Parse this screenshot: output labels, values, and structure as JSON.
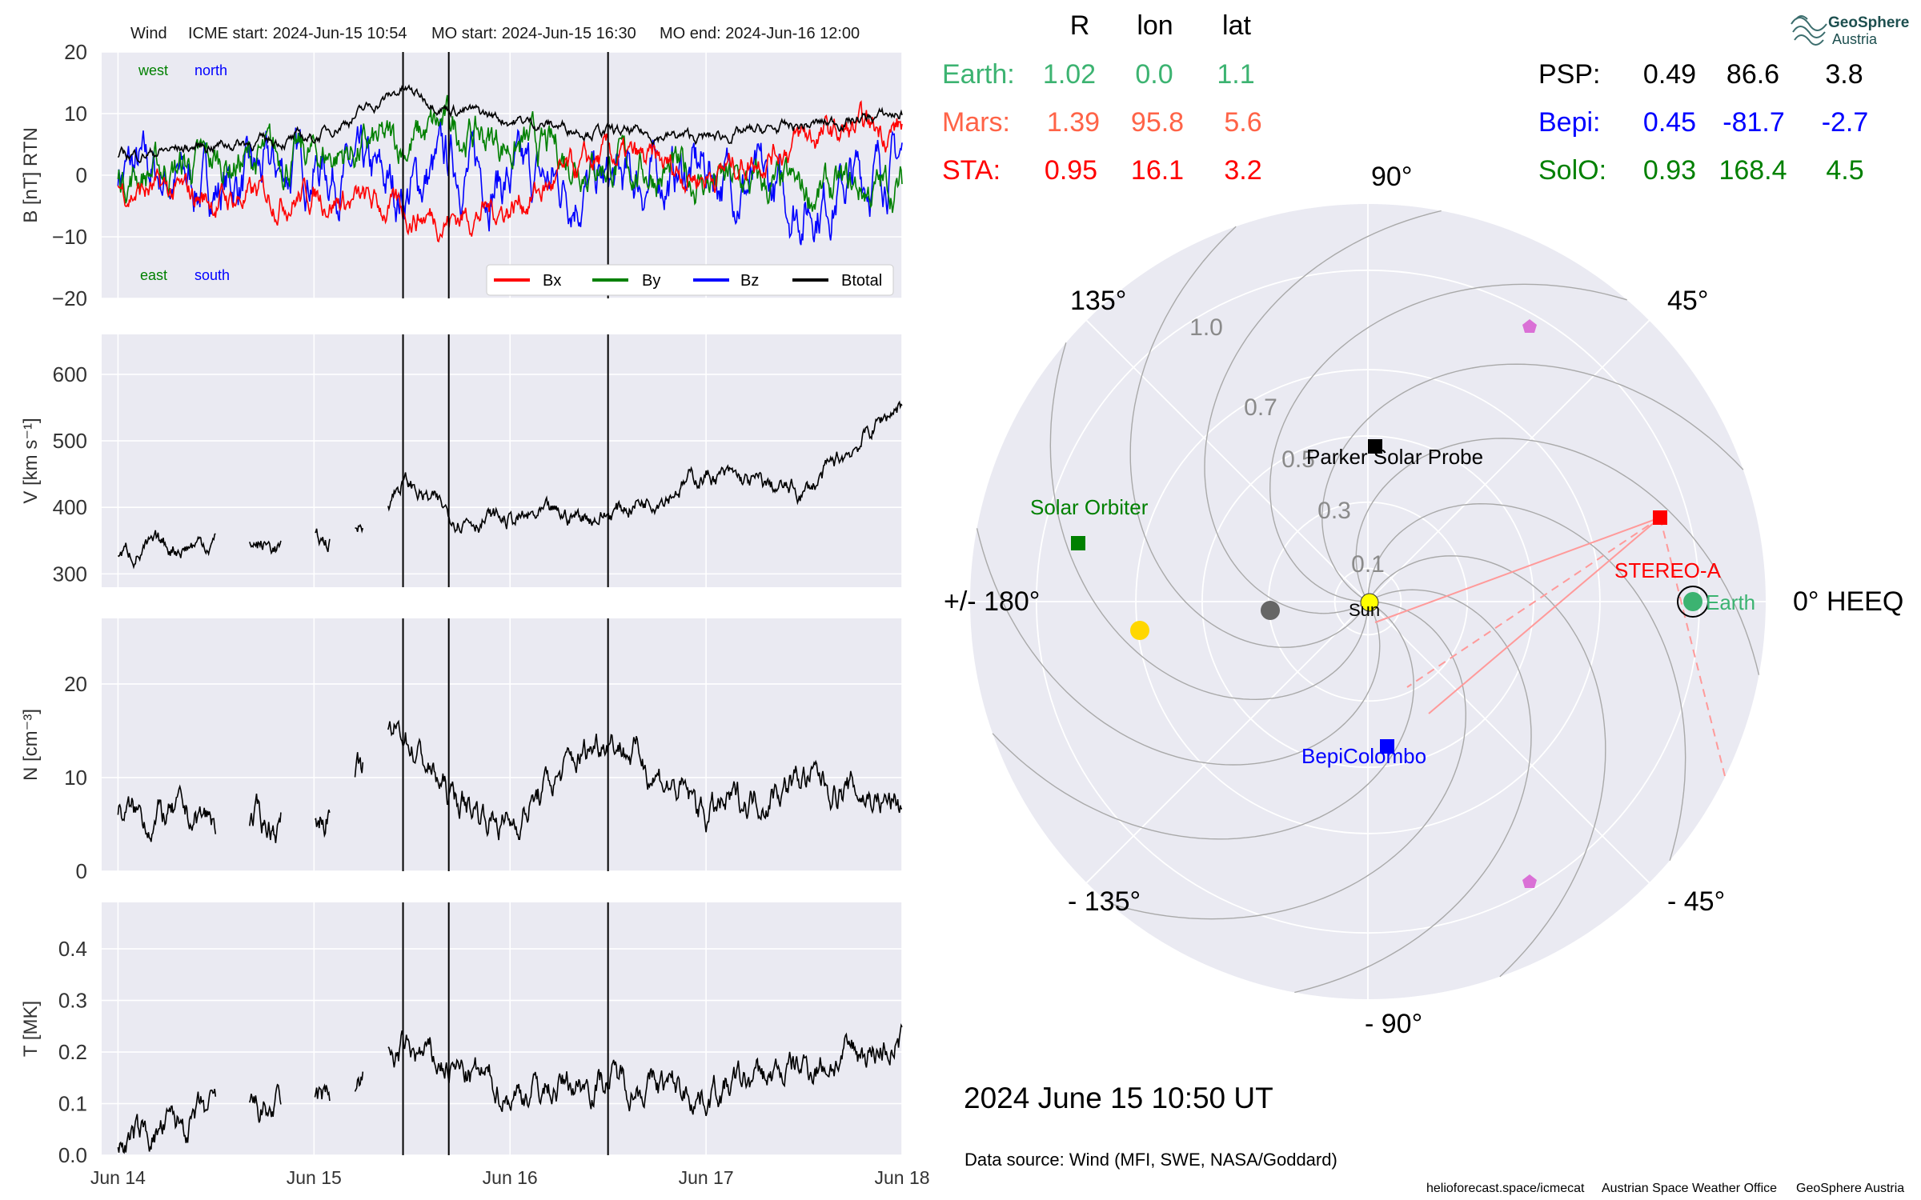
{
  "header": {
    "spacecraft": "Wind",
    "icme_start": "ICME start: 2024-Jun-15 10:54",
    "mo_start": "MO start: 2024-Jun-15 16:30",
    "mo_end": "MO end: 2024-Jun-16 12:00"
  },
  "panels": {
    "b_ylabel": "B [nT] RTN",
    "v_ylabel": "V [km s⁻¹]",
    "n_ylabel": "N [cm⁻³]",
    "t_ylabel": "T [MK]",
    "b_labels": {
      "west": "west",
      "north": "north",
      "east": "east",
      "south": "south"
    },
    "legend": [
      "Bx",
      "By",
      "Bz",
      "Btotal"
    ]
  },
  "colors": {
    "bx": "#ff0000",
    "by": "#008000",
    "bz": "#0000ff",
    "btot": "#000000",
    "panel_bg": "#eaeaf2",
    "earth": "#3cb371",
    "mars": "#ff6347",
    "sta": "#ff0000",
    "psp": "#000000",
    "bepi": "#0000ff",
    "solo": "#008000"
  },
  "positions_table": {
    "headers": [
      "R",
      "lon",
      "lat"
    ],
    "left_rows": [
      {
        "name": "Earth:",
        "r": "1.02",
        "lon": "0.0",
        "lat": "1.1"
      },
      {
        "name": "Mars:",
        "r": "1.39",
        "lon": "95.8",
        "lat": "5.6"
      },
      {
        "name": "STA:",
        "r": "0.95",
        "lon": "16.1",
        "lat": "3.2"
      }
    ],
    "right_rows": [
      {
        "name": "PSP:",
        "r": "0.49",
        "lon": "86.6",
        "lat": "3.8"
      },
      {
        "name": "Bepi:",
        "r": "0.45",
        "lon": "-81.7",
        "lat": "-2.7"
      },
      {
        "name": "SolO:",
        "r": "0.93",
        "lon": "168.4",
        "lat": "4.5"
      }
    ]
  },
  "polar": {
    "angle_labels": {
      "a90": "90°",
      "a45": "45°",
      "a0": "0° HEEQ",
      "am45": "- 45°",
      "am90": "- 90°",
      "am135": "- 135°",
      "a180": "+/- 180°",
      "a135": "135°"
    },
    "radial_ticks": [
      "0.1",
      "0.3",
      "0.5",
      "0.7",
      "1.0"
    ],
    "object_labels": {
      "sun": "Sun",
      "earth": "Earth",
      "sta": "STEREO-A",
      "psp": "Parker Solar Probe",
      "solo": "Solar Orbiter",
      "bepi": "BepiColombo"
    }
  },
  "date_text": "2024 June 15  10:50 UT",
  "data_source": "Data source: Wind (MFI, SWE, NASA/Goddard)",
  "footer": {
    "site": "helioforecast.space/icmecat",
    "office": "Austrian Space Weather Office",
    "org": "GeoSphere Austria"
  },
  "logo": {
    "line1": "GeoSphere",
    "line2": "Austria"
  },
  "chart_data": [
    {
      "type": "line",
      "title": "",
      "xlabel": "",
      "ylabel": "B [nT] RTN",
      "x_ticks": [
        "Jun 14",
        "Jun 15",
        "Jun 16",
        "Jun 17",
        "Jun 18"
      ],
      "xlim": [
        "2024-06-13 22:00",
        "2024-06-18 00:00"
      ],
      "ylim": [
        -20,
        20
      ],
      "y_ticks": [
        -20,
        -10,
        0,
        10,
        20
      ],
      "events": [
        "2024-06-15 10:54",
        "2024-06-15 16:30",
        "2024-06-16 12:00"
      ],
      "series": [
        {
          "name": "Btotal",
          "x": [
            "06-14 00:00",
            "06-14 12:00",
            "06-15 00:00",
            "06-15 10:54",
            "06-15 16:30",
            "06-16 00:00",
            "06-16 12:00",
            "06-17 00:00",
            "06-17 12:00",
            "06-18 00:00"
          ],
          "values": [
            3,
            5,
            6,
            14,
            11,
            9,
            7,
            6,
            8,
            10
          ]
        },
        {
          "name": "Bx",
          "x": [
            "06-14 00:00",
            "06-14 12:00",
            "06-15 00:00",
            "06-15 10:54",
            "06-15 16:30",
            "06-16 00:00",
            "06-16 12:00",
            "06-17 00:00",
            "06-17 12:00",
            "06-18 00:00"
          ],
          "values": [
            -2,
            -4,
            -3,
            -6,
            -7,
            -5,
            3,
            0,
            6,
            8
          ]
        },
        {
          "name": "By",
          "x": [
            "06-14 00:00",
            "06-14 12:00",
            "06-15 00:00",
            "06-15 10:54",
            "06-15 16:30",
            "06-16 00:00",
            "06-16 12:00",
            "06-17 00:00",
            "06-17 12:00",
            "06-18 00:00"
          ],
          "values": [
            0,
            2,
            3,
            5,
            8,
            5,
            2,
            -1,
            -3,
            -2
          ]
        },
        {
          "name": "Bz",
          "x": [
            "06-14 00:00",
            "06-14 12:00",
            "06-15 00:00",
            "06-15 10:54",
            "06-15 16:30",
            "06-16 00:00",
            "06-16 12:00",
            "06-17 00:00",
            "06-17 12:00",
            "06-18 00:00"
          ],
          "values": [
            1,
            -2,
            2,
            -3,
            2,
            -1,
            -2,
            1,
            -5,
            3
          ]
        }
      ]
    },
    {
      "type": "line",
      "ylabel": "V [km s⁻¹]",
      "x_ticks": [
        "Jun 14",
        "Jun 15",
        "Jun 16",
        "Jun 17",
        "Jun 18"
      ],
      "y_ticks": [
        300,
        400,
        500,
        600
      ],
      "ylim": [
        280,
        660
      ],
      "series": [
        {
          "name": "V",
          "x": [
            "06-14 00:00",
            "06-14 12:00",
            "06-14 20:00",
            "06-15 04:00",
            "06-15 10:54",
            "06-15 16:30",
            "06-16 00:00",
            "06-16 12:00",
            "06-17 00:00",
            "06-17 12:00",
            "06-18 00:00"
          ],
          "values": [
            330,
            350,
            340,
            350,
            440,
            390,
            380,
            390,
            450,
            420,
            560
          ]
        }
      ]
    },
    {
      "type": "line",
      "ylabel": "N [cm⁻³]",
      "x_ticks": [
        "Jun 14",
        "Jun 15",
        "Jun 16",
        "Jun 17",
        "Jun 18"
      ],
      "y_ticks": [
        0,
        10,
        20
      ],
      "ylim": [
        0,
        27
      ],
      "series": [
        {
          "name": "N",
          "x": [
            "06-14 00:00",
            "06-14 12:00",
            "06-15 00:00",
            "06-15 10:54",
            "06-15 16:30",
            "06-16 00:00",
            "06-16 12:00",
            "06-17 00:00",
            "06-17 12:00",
            "06-18 00:00"
          ],
          "values": [
            6,
            5.5,
            5,
            15,
            8,
            5,
            15,
            6,
            10,
            7
          ]
        }
      ]
    },
    {
      "type": "line",
      "ylabel": "T [MK]",
      "x_ticks": [
        "Jun 14",
        "Jun 15",
        "Jun 16",
        "Jun 17",
        "Jun 18"
      ],
      "y_ticks": [
        0.0,
        0.1,
        0.2,
        0.3,
        0.4
      ],
      "ylim": [
        0,
        0.49
      ],
      "series": [
        {
          "name": "T",
          "x": [
            "06-14 00:00",
            "06-14 12:00",
            "06-15 00:00",
            "06-15 10:54",
            "06-15 16:30",
            "06-16 00:00",
            "06-16 12:00",
            "06-17 00:00",
            "06-17 12:00",
            "06-18 00:00"
          ],
          "values": [
            0.02,
            0.08,
            0.09,
            0.2,
            0.17,
            0.12,
            0.15,
            0.12,
            0.17,
            0.22
          ]
        }
      ]
    },
    {
      "type": "scatter",
      "title": "",
      "coordinate_system": "polar, HEEQ longitude (deg) vs radius (AU)",
      "rlim": [
        0,
        1.2
      ],
      "r_ticks": [
        0.1,
        0.3,
        0.5,
        0.7,
        1.0
      ],
      "points": [
        {
          "name": "Sun",
          "lon": 0,
          "r": 0
        },
        {
          "name": "Earth",
          "lon": 0.0,
          "r": 1.02
        },
        {
          "name": "STEREO-A",
          "lon": 16.1,
          "r": 0.95
        },
        {
          "name": "Parker Solar Probe",
          "lon": 86.6,
          "r": 0.49
        },
        {
          "name": "BepiColombo",
          "lon": -81.7,
          "r": 0.45
        },
        {
          "name": "Solar Orbiter",
          "lon": 168.4,
          "r": 0.93
        }
      ]
    }
  ]
}
